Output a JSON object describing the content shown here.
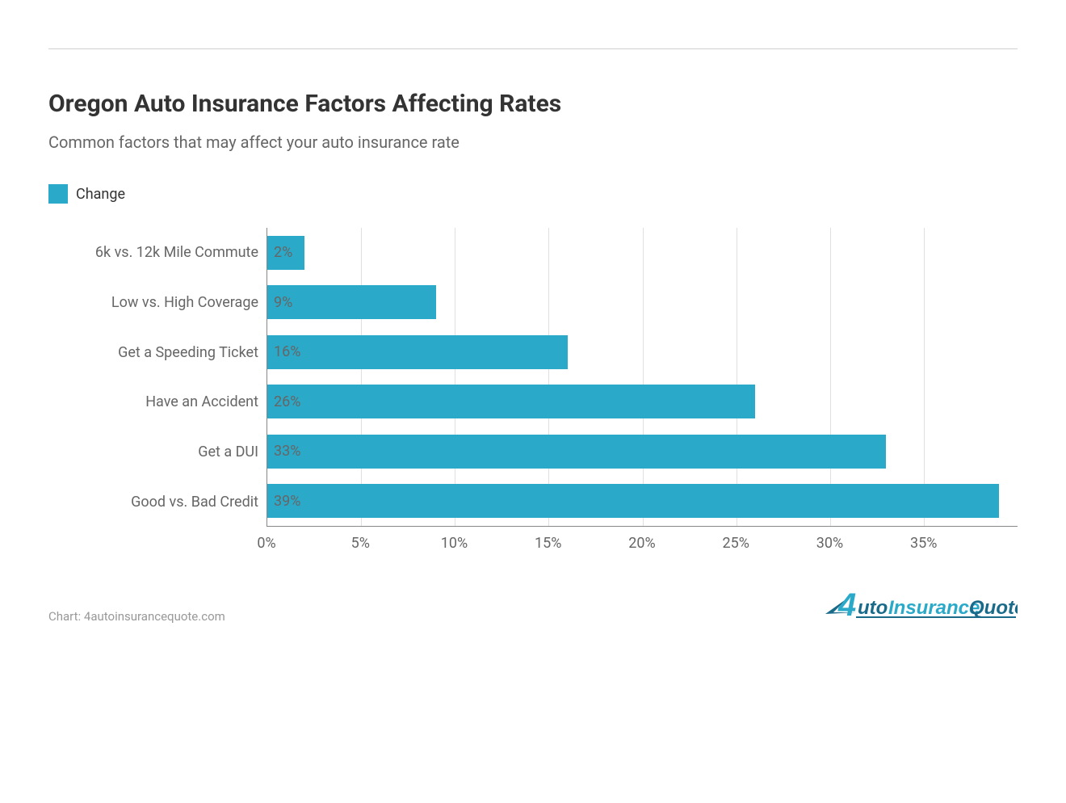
{
  "chart": {
    "type": "bar-horizontal",
    "title": "Oregon Auto Insurance Factors Affecting Rates",
    "subtitle": "Common factors that may affect your auto insurance rate",
    "legend": {
      "label": "Change",
      "color": "#2aa9c9"
    },
    "categories": [
      "6k vs. 12k Mile Commute",
      "Low vs. High Coverage",
      "Get a Speeding Ticket",
      "Have an Accident",
      "Get a DUI",
      "Good vs. Bad Credit"
    ],
    "values": [
      2,
      9,
      16,
      26,
      33,
      39
    ],
    "value_labels": [
      "2%",
      "9%",
      "16%",
      "26%",
      "33%",
      "39%"
    ],
    "bar_color": "#2aa9c9",
    "bar_label_color": "#666666",
    "xlim": [
      0,
      40
    ],
    "xticks": [
      0,
      5,
      10,
      15,
      20,
      25,
      30,
      35
    ],
    "xtick_labels": [
      "0%",
      "5%",
      "10%",
      "15%",
      "20%",
      "25%",
      "30%",
      "35%"
    ],
    "background_color": "#ffffff",
    "grid_color": "#e0e0e0",
    "axis_color": "#888888",
    "title_fontsize": 30,
    "subtitle_fontsize": 20,
    "label_fontsize": 18,
    "category_label_color": "#666666",
    "divider_color": "#d0d0d0"
  },
  "credit": "Chart: 4autoinsurancequote.com",
  "logo": {
    "prefix": "4",
    "text_auto": "uto",
    "text_insurance": "Insurance",
    "text_quote": "Quote",
    "color_primary": "#1a6a8a",
    "color_accent": "#2aa9c9"
  }
}
